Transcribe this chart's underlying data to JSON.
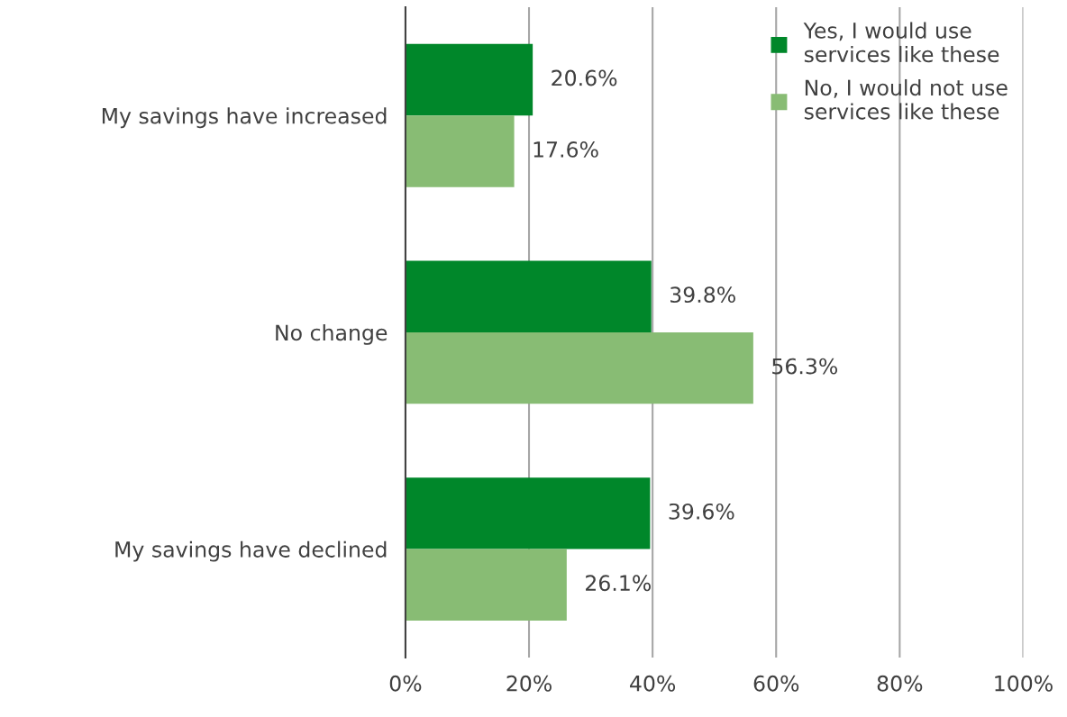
{
  "chart_data": {
    "type": "bar",
    "orientation": "horizontal",
    "categories": [
      "My savings have increased",
      "No change",
      "My savings have declined"
    ],
    "series": [
      {
        "name": "Yes, I would use\nservices like these",
        "color": "#00872a",
        "values": [
          20.6,
          39.8,
          39.6
        ],
        "value_labels": [
          "20.6%",
          "39.8%",
          "39.6%"
        ]
      },
      {
        "name": "No, I would not use\nservices like these",
        "color": "#88bc74",
        "values": [
          17.6,
          56.3,
          26.1
        ],
        "value_labels": [
          "17.6%",
          "56.3%",
          "26.1%"
        ]
      }
    ],
    "xlim": [
      0,
      100
    ],
    "xticks": [
      {
        "value": 0,
        "label": "0%"
      },
      {
        "value": 20,
        "label": "20%"
      },
      {
        "value": 40,
        "label": "40%"
      },
      {
        "value": 60,
        "label": "60%"
      },
      {
        "value": 80,
        "label": "80%"
      },
      {
        "value": 100,
        "label": "100%"
      }
    ],
    "grid": "x",
    "legend": "top right"
  }
}
